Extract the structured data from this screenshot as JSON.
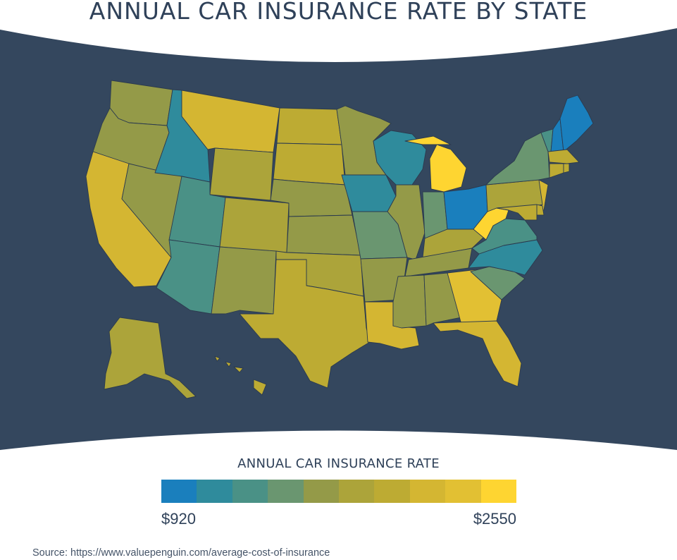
{
  "title": "ANNUAL CAR INSURANCE RATE BY STATE",
  "legend": {
    "title": "ANNUAL CAR INSURANCE RATE",
    "min_label": "$920",
    "max_label": "$2550",
    "colors": [
      "#1a7fbd",
      "#2f8b9c",
      "#4a9186",
      "#6a9670",
      "#949a48",
      "#aca43a",
      "#bdab33",
      "#d4b632",
      "#e2c033",
      "#fed531"
    ]
  },
  "source": "Source: https://www.valuepenguin.com/average-cost-of-insurance",
  "colors": {
    "background_panel": "#34475e",
    "title_text": "#2f4159"
  },
  "states": {
    "WA": 4,
    "OR": 4,
    "CA": 7,
    "NV": 4,
    "ID": 1,
    "MT": 7,
    "WY": 5,
    "UT": 2,
    "AZ": 2,
    "CO": 5,
    "NM": 4,
    "ND": 6,
    "SD": 6,
    "NE": 4,
    "KS": 4,
    "OK": 5,
    "TX": 6,
    "MN": 4,
    "IA": 1,
    "MO": 3,
    "AR": 4,
    "LA": 7,
    "WI": 1,
    "IL": 4,
    "IN": 3,
    "MI": 9,
    "OH": 0,
    "KY": 5,
    "TN": 4,
    "MS": 4,
    "AL": 4,
    "GA": 8,
    "FL": 7,
    "SC": 3,
    "NC": 1,
    "VA": 2,
    "WV": 9,
    "PA": 5,
    "NY": 3,
    "VT": 2,
    "NH": 0,
    "ME": 0,
    "MA": 6,
    "RI": 6,
    "CT": 6,
    "NJ": 7,
    "DE": 6,
    "MD": 6,
    "AK": 5,
    "HI": 6
  }
}
